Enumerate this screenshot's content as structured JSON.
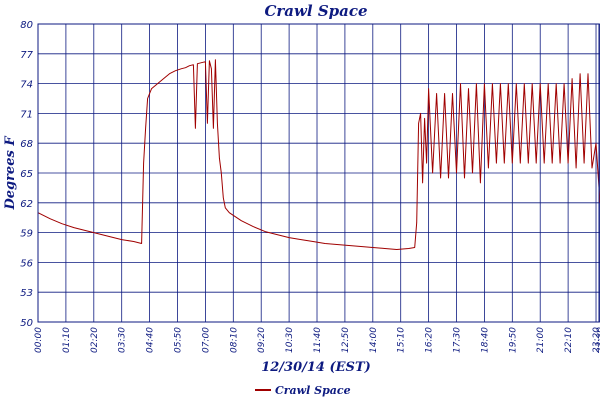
{
  "chart_data": {
    "type": "line",
    "title": "Crawl Space",
    "xlabel": "12/30/14 (EST)",
    "ylabel": "Degrees F",
    "ylim": [
      50,
      80
    ],
    "yticks": [
      "50",
      "53",
      "56",
      "59",
      "62",
      "65",
      "68",
      "71",
      "74",
      "77",
      "80"
    ],
    "xlim_minutes": [
      0,
      1410
    ],
    "xticks": [
      "00:00",
      "01:10",
      "02:20",
      "03:30",
      "04:40",
      "05:50",
      "07:00",
      "08:10",
      "09:20",
      "10:30",
      "11:40",
      "12:50",
      "14:00",
      "15:10",
      "16:20",
      "17:30",
      "18:40",
      "19:50",
      "21:00",
      "22:10",
      "23:20",
      "23:30"
    ],
    "grid": true,
    "legend_position": "bottom",
    "series": [
      {
        "name": "Crawl Space",
        "color": "#a00000",
        "x_time": [
          "00:00",
          "00:30",
          "01:00",
          "01:30",
          "02:00",
          "02:30",
          "03:00",
          "03:30",
          "04:00",
          "04:20",
          "04:25",
          "04:30",
          "04:35",
          "04:45",
          "05:00",
          "05:15",
          "05:30",
          "05:45",
          "06:00",
          "06:10",
          "06:20",
          "06:30",
          "06:35",
          "06:40",
          "06:50",
          "07:00",
          "07:05",
          "07:10",
          "07:15",
          "07:20",
          "07:25",
          "07:30",
          "07:35",
          "07:40",
          "07:45",
          "07:50",
          "08:00",
          "08:30",
          "09:00",
          "09:30",
          "10:00",
          "10:30",
          "11:00",
          "11:30",
          "12:00",
          "12:30",
          "13:00",
          "13:30",
          "14:00",
          "14:30",
          "15:00",
          "15:30",
          "15:45",
          "15:50",
          "15:55",
          "16:00",
          "16:05",
          "16:10",
          "16:15",
          "16:20",
          "16:30",
          "16:40",
          "16:50",
          "17:00",
          "17:10",
          "17:20",
          "17:30",
          "17:40",
          "17:50",
          "18:00",
          "18:10",
          "18:20",
          "18:30",
          "18:40",
          "18:50",
          "19:00",
          "19:10",
          "19:20",
          "19:30",
          "19:40",
          "19:50",
          "20:00",
          "20:10",
          "20:20",
          "20:30",
          "20:40",
          "20:50",
          "21:00",
          "21:10",
          "21:20",
          "21:30",
          "21:40",
          "21:50",
          "22:00",
          "22:10",
          "22:20",
          "22:30",
          "22:40",
          "22:50",
          "23:00",
          "23:10",
          "23:20",
          "23:30"
        ],
        "y": [
          61.0,
          60.4,
          59.9,
          59.5,
          59.2,
          58.9,
          58.6,
          58.3,
          58.1,
          57.9,
          66.0,
          69.5,
          72.5,
          73.5,
          74.0,
          74.5,
          75.0,
          75.3,
          75.5,
          75.6,
          75.8,
          75.9,
          69.5,
          76.0,
          76.1,
          76.2,
          70.0,
          76.3,
          75.5,
          69.5,
          76.4,
          70.0,
          66.5,
          65.0,
          62.5,
          61.5,
          61.0,
          60.2,
          59.6,
          59.1,
          58.8,
          58.5,
          58.3,
          58.1,
          57.9,
          57.8,
          57.7,
          57.6,
          57.5,
          57.4,
          57.3,
          57.4,
          57.5,
          60.0,
          70.0,
          71.0,
          64.0,
          70.5,
          66.0,
          73.5,
          65.0,
          73.0,
          64.5,
          73.0,
          64.5,
          73.0,
          65.0,
          74.0,
          64.5,
          73.5,
          65.0,
          74.0,
          64.0,
          74.0,
          65.5,
          74.0,
          66.0,
          74.0,
          66.0,
          74.0,
          66.0,
          74.0,
          66.0,
          74.0,
          66.0,
          74.0,
          66.0,
          74.0,
          66.0,
          74.0,
          66.0,
          74.0,
          66.0,
          74.0,
          66.0,
          74.5,
          65.5,
          75.0,
          66.0,
          75.0,
          65.5,
          68.0,
          62.0
        ]
      }
    ]
  }
}
